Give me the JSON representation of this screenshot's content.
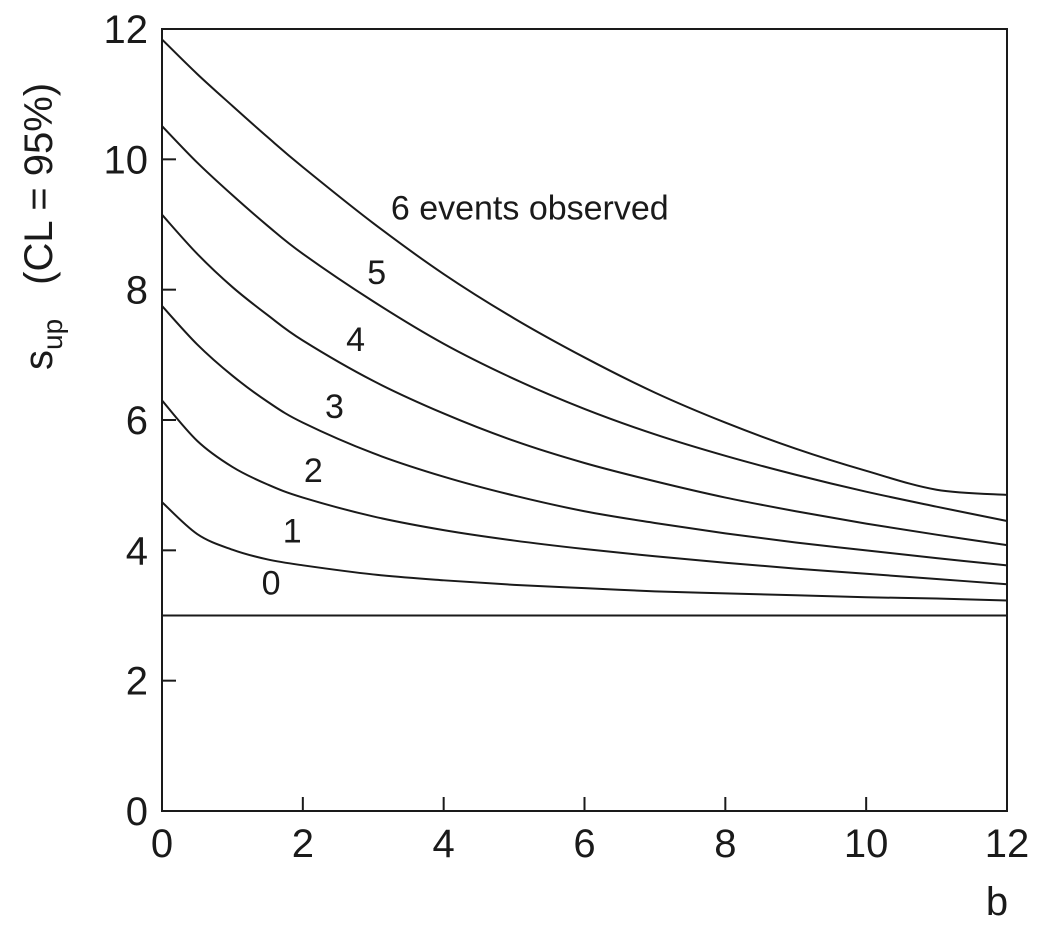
{
  "chart_data": {
    "type": "line",
    "title": "",
    "xlabel": "b",
    "ylabel_main": "s",
    "ylabel_sub": "up",
    "ylabel_suffix": "(CL = 95%)",
    "xlim": [
      0,
      12
    ],
    "ylim": [
      0,
      12
    ],
    "x_ticks": [
      0,
      2,
      4,
      6,
      8,
      10,
      12
    ],
    "y_ticks": [
      0,
      2,
      4,
      6,
      8,
      10,
      12
    ],
    "grid": false,
    "line_color": "#1a1a1a",
    "x": [
      0,
      0.5,
      1,
      1.5,
      2,
      3,
      4,
      5,
      6,
      7,
      8,
      9,
      10,
      11,
      12
    ],
    "series": [
      {
        "label": "0",
        "values": [
          3.0,
          3.0,
          3.0,
          3.0,
          3.0,
          3.0,
          3.0,
          3.0,
          3.0,
          3.0,
          3.0,
          3.0,
          3.0,
          3.0,
          3.0
        ]
      },
      {
        "label": "1",
        "values": [
          4.74,
          4.25,
          4.01,
          3.86,
          3.77,
          3.63,
          3.54,
          3.47,
          3.42,
          3.37,
          3.34,
          3.31,
          3.28,
          3.26,
          3.23
        ]
      },
      {
        "label": "2",
        "values": [
          6.3,
          5.68,
          5.28,
          5.01,
          4.81,
          4.52,
          4.31,
          4.15,
          4.02,
          3.91,
          3.81,
          3.72,
          3.64,
          3.56,
          3.48
        ]
      },
      {
        "label": "3",
        "values": [
          7.75,
          7.16,
          6.68,
          6.28,
          5.96,
          5.49,
          5.13,
          4.84,
          4.6,
          4.42,
          4.26,
          4.12,
          4.0,
          3.88,
          3.77
        ]
      },
      {
        "label": "4",
        "values": [
          9.15,
          8.55,
          8.04,
          7.61,
          7.22,
          6.6,
          6.1,
          5.68,
          5.34,
          5.06,
          4.81,
          4.6,
          4.41,
          4.24,
          4.08
        ]
      },
      {
        "label": "5",
        "values": [
          10.51,
          9.95,
          9.45,
          8.98,
          8.55,
          7.82,
          7.17,
          6.63,
          6.17,
          5.78,
          5.45,
          5.16,
          4.9,
          4.67,
          4.45
        ]
      },
      {
        "label": "6 events observed",
        "values": [
          11.84,
          11.31,
          10.82,
          10.34,
          9.88,
          9.02,
          8.24,
          7.56,
          6.96,
          6.42,
          5.96,
          5.56,
          5.22,
          4.93,
          4.85
        ]
      }
    ]
  }
}
